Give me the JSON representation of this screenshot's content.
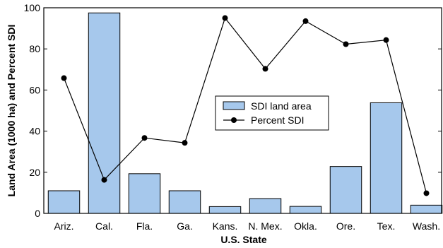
{
  "chart_data": {
    "type": "bar",
    "categories": [
      "Ariz.",
      "Cal.",
      "Fla.",
      "Ga.",
      "Kans.",
      "N. Mex.",
      "Okla.",
      "Ore.",
      "Tex.",
      "Wash."
    ],
    "series": [
      {
        "name": "SDI land area",
        "type": "bar",
        "values": [
          11,
          97.5,
          19.3,
          11,
          3.3,
          7.2,
          3.4,
          22.8,
          53.8,
          4
        ],
        "color": "#a6c8ec"
      },
      {
        "name": "Percent SDI",
        "type": "line",
        "values": [
          65.8,
          16.3,
          36.7,
          34.3,
          95,
          70.3,
          93.5,
          82.3,
          84.3,
          9.8
        ],
        "color": "#000000"
      }
    ],
    "xlabel": "U.S. State",
    "ylabel": "Land Area (1000 ha) and Percent SDI",
    "ylim": [
      0,
      100
    ],
    "yticks": [
      0,
      20,
      40,
      60,
      80,
      100
    ],
    "legend_position": "center-right",
    "grid": false
  }
}
